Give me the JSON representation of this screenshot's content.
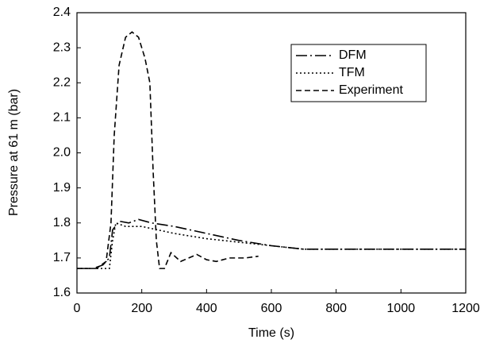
{
  "chart_data": {
    "type": "line",
    "xlabel": "Time (s)",
    "ylabel": "Pressure at 61 m (bar)",
    "xlim": [
      0,
      1200
    ],
    "xticks": [
      0,
      200,
      400,
      600,
      800,
      1000,
      1200
    ],
    "ylim": [
      1.6,
      2.4
    ],
    "yticks": [
      1.6,
      1.7,
      1.8,
      1.9,
      {
        "value": 2,
        "label": "2.0"
      },
      2.1,
      2.2,
      2.3,
      2.4
    ],
    "grid": false,
    "legend": "upper right",
    "series": [
      {
        "name": "DFM",
        "color": "#000000",
        "dash": "dashdot",
        "x": [
          0,
          50,
          80,
          100,
          110,
          130,
          160,
          190,
          230,
          300,
          400,
          500,
          600,
          700,
          800,
          1200
        ],
        "values": [
          1.67,
          1.67,
          1.68,
          1.7,
          1.78,
          1.805,
          1.8,
          1.81,
          1.8,
          1.79,
          1.77,
          1.75,
          1.735,
          1.725,
          1.725,
          1.725
        ]
      },
      {
        "name": "TFM",
        "color": "#000000",
        "dash": "dotted",
        "x": [
          0,
          100,
          110,
          120,
          150,
          200,
          300,
          400,
          500,
          600,
          700,
          1200
        ],
        "values": [
          1.67,
          1.67,
          1.75,
          1.8,
          1.79,
          1.79,
          1.77,
          1.755,
          1.745,
          1.735,
          1.725,
          1.725
        ]
      },
      {
        "name": "Experiment",
        "color": "#000000",
        "dash": "dashed",
        "x": [
          0,
          60,
          90,
          105,
          115,
          130,
          150,
          170,
          190,
          210,
          225,
          235,
          245,
          255,
          270,
          290,
          320,
          345,
          370,
          400,
          430,
          470,
          520,
          560
        ],
        "values": [
          1.67,
          1.67,
          1.69,
          1.8,
          2.05,
          2.25,
          2.33,
          2.345,
          2.33,
          2.27,
          2.2,
          1.95,
          1.75,
          1.67,
          1.67,
          1.715,
          1.69,
          1.7,
          1.71,
          1.695,
          1.69,
          1.7,
          1.7,
          1.705
        ]
      }
    ]
  }
}
